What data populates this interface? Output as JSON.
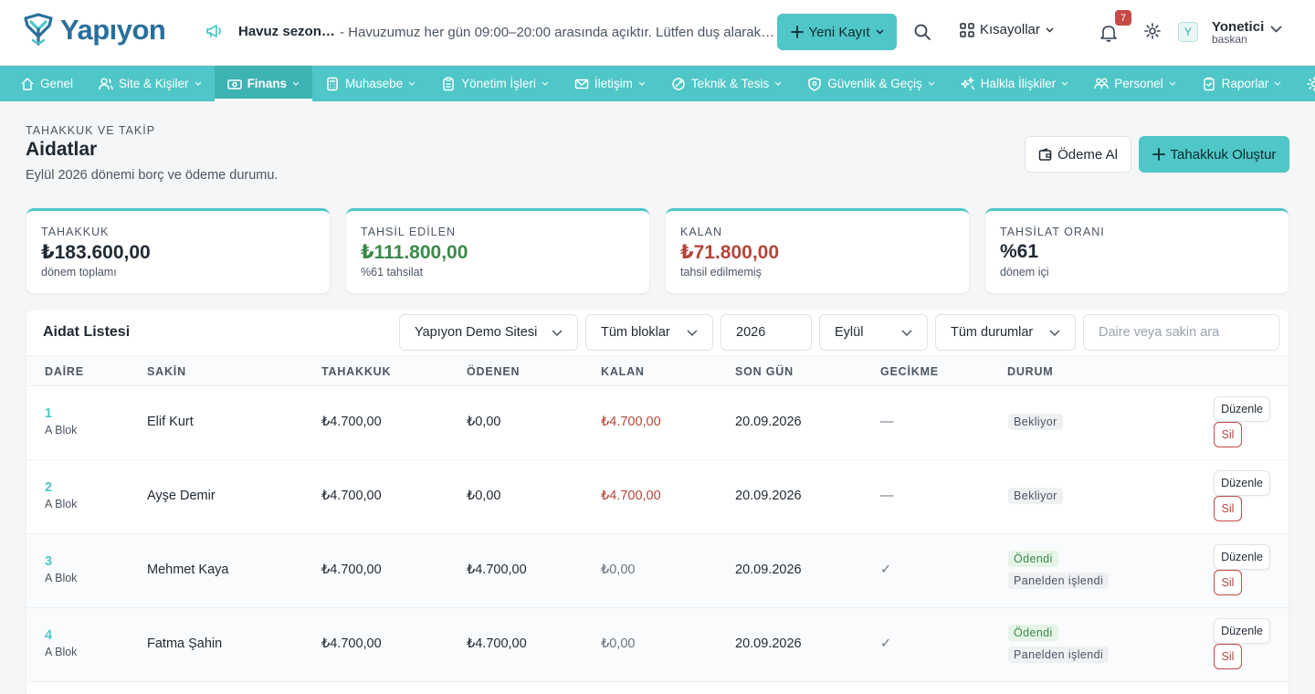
{
  "app": {
    "logo_text": "Yapıyon"
  },
  "header": {
    "announcement_title": "Havuz sezon…",
    "announcement_text": "- Havuzumuz her gün 09:00–20:00 arasında açıktır. Lütfen duş alarak…",
    "new_record_label": "Yeni Kayıt",
    "shortcuts_label": "Kısayollar",
    "notification_count": "7",
    "user_initial": "Y",
    "user_name": "Yonetici",
    "user_role": "baskan"
  },
  "nav": [
    {
      "label": "Genel",
      "icon": "home-icon",
      "chevron": false,
      "active": false
    },
    {
      "label": "Site & Kişiler",
      "icon": "users-icon",
      "chevron": true,
      "active": false
    },
    {
      "label": "Finans",
      "icon": "money-icon",
      "chevron": true,
      "active": true
    },
    {
      "label": "Muhasebe",
      "icon": "calculator-icon",
      "chevron": true,
      "active": false
    },
    {
      "label": "Yönetim İşleri",
      "icon": "clipboard-icon",
      "chevron": true,
      "active": false
    },
    {
      "label": "İletişim",
      "icon": "mail-icon",
      "chevron": true,
      "active": false
    },
    {
      "label": "Teknik & Tesis",
      "icon": "tool-icon",
      "chevron": true,
      "active": false
    },
    {
      "label": "Güvenlik & Geçiş",
      "icon": "shield-icon",
      "chevron": true,
      "active": false
    },
    {
      "label": "Halkla İlişkiler",
      "icon": "sparkle-icon",
      "chevron": true,
      "active": false
    },
    {
      "label": "Personel",
      "icon": "staff-icon",
      "chevron": true,
      "active": false
    },
    {
      "label": "Raporlar",
      "icon": "report-icon",
      "chevron": true,
      "active": false
    },
    {
      "label": "Sistem",
      "icon": "gear-icon",
      "chevron": true,
      "active": false
    }
  ],
  "page": {
    "eyebrow": "TAHAKKUK VE TAKİP",
    "title": "Aidatlar",
    "subtitle": "Eylül 2026 dönemi borç ve ödeme durumu.",
    "pay_button": "Ödeme Al",
    "accrue_button": "Tahakkuk Oluştur"
  },
  "stats": {
    "accrual": {
      "label": "TAHAKKUK",
      "value": "₺183.600,00",
      "sub": "dönem toplamı"
    },
    "collected": {
      "label": "TAHSİL EDİLEN",
      "value": "₺111.800,00",
      "sub": "%61 tahsilat"
    },
    "remaining": {
      "label": "KALAN",
      "value": "₺71.800,00",
      "sub": "tahsil edilmemiş"
    },
    "rate": {
      "label": "TAHSİLAT ORANI",
      "value": "%61",
      "sub": "dönem içi"
    }
  },
  "list": {
    "title": "Aidat Listesi",
    "filters": {
      "site": "Yapıyon Demo Sitesi",
      "block": "Tüm bloklar",
      "year": "2026",
      "month": "Eylül",
      "status": "Tüm durumlar",
      "search_placeholder": "Daire veya sakin ara"
    },
    "columns": [
      "DAİRE",
      "SAKİN",
      "TAHAKKUK",
      "ÖDENEN",
      "KALAN",
      "SON GÜN",
      "GECİKME",
      "DURUM"
    ],
    "edit_label": "Düzenle",
    "delete_label": "Sil",
    "rows": [
      {
        "apt": "1",
        "block": "A Blok",
        "resident": "Elif Kurt",
        "accrual": "₺4.700,00",
        "paid": "₺0,00",
        "remaining": "₺4.700,00",
        "due": "20.09.2026",
        "delay": "—",
        "status": "Bekliyor",
        "note": ""
      },
      {
        "apt": "2",
        "block": "A Blok",
        "resident": "Ayşe Demir",
        "accrual": "₺4.700,00",
        "paid": "₺0,00",
        "remaining": "₺4.700,00",
        "due": "20.09.2026",
        "delay": "—",
        "status": "Bekliyor",
        "note": ""
      },
      {
        "apt": "3",
        "block": "A Blok",
        "resident": "Mehmet Kaya",
        "accrual": "₺4.700,00",
        "paid": "₺4.700,00",
        "remaining": "₺0,00",
        "due": "20.09.2026",
        "delay": "✓",
        "status": "Ödendi",
        "note": "Panelden işlendi"
      },
      {
        "apt": "4",
        "block": "A Blok",
        "resident": "Fatma Şahin",
        "accrual": "₺4.700,00",
        "paid": "₺4.700,00",
        "remaining": "₺0,00",
        "due": "20.09.2026",
        "delay": "✓",
        "status": "Ödendi",
        "note": "Panelden işlendi"
      }
    ]
  },
  "colors": {
    "accent": "#4fc6c7",
    "paid": "#3a8a4a",
    "due": "#b3463b"
  }
}
